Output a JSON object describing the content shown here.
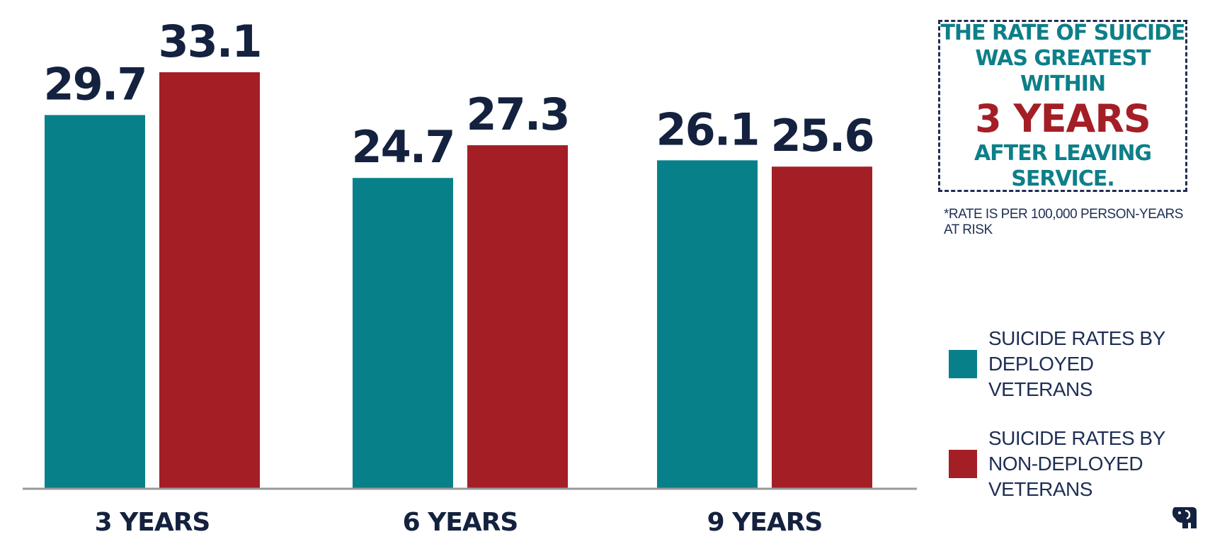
{
  "chart_data": {
    "type": "bar",
    "categories": [
      "3 YEARS",
      "6 YEARS",
      "9 YEARS"
    ],
    "series": [
      {
        "name": "SUICIDE RATES BY DEPLOYED VETERANS",
        "color": "#08808a",
        "values": [
          29.7,
          24.7,
          26.1
        ],
        "labels": [
          "29.7",
          "24.7",
          "26.1"
        ]
      },
      {
        "name": "SUICIDE RATES BY NON-DEPLOYED VETERANS",
        "color": "#a41e26",
        "values": [
          33.1,
          27.3,
          25.6
        ],
        "labels": [
          "33.1",
          "27.3",
          "25.6"
        ]
      }
    ],
    "ylim": [
      0,
      33.1
    ],
    "grid": false,
    "legend_position": "right"
  },
  "callout": {
    "line1": "THE RATE OF SUICIDE",
    "line2": "WAS GREATEST WITHIN",
    "emphasis": "3 YEARS",
    "line3": "AFTER LEAVING SERVICE."
  },
  "footnote": "*RATE IS PER 100,000 PERSON-YEARS AT RISK",
  "legend": {
    "items": [
      {
        "line1": "SUICIDE RATES BY",
        "line2": "DEPLOYED VETERANS",
        "color": "#08808a"
      },
      {
        "line1": "SUICIDE RATES BY",
        "line2": "NON-DEPLOYED VETERANS",
        "color": "#a41e26"
      }
    ]
  },
  "colors": {
    "text": "#14213f",
    "accent_teal": "#0d7f89",
    "accent_red": "#a41e26",
    "axis": "#999999"
  },
  "logo": {
    "icon": "elephant-logo-icon",
    "color": "#14213f"
  }
}
